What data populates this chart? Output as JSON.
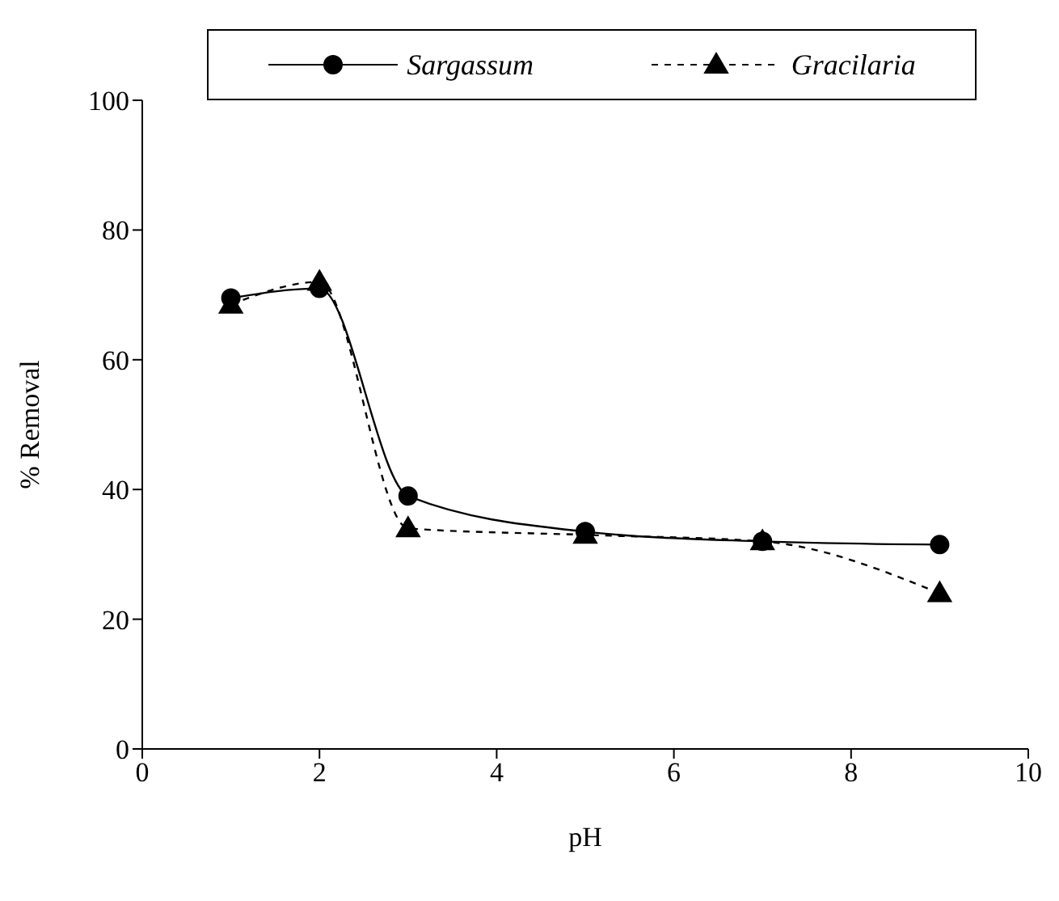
{
  "chart_data": {
    "type": "line",
    "xlabel": "pH",
    "ylabel": "% Removal",
    "x": [
      1,
      2,
      3,
      5,
      7,
      9
    ],
    "series": [
      {
        "name": "Sargassum",
        "color": "#000000",
        "values": [
          69.5,
          71,
          39,
          33.5,
          32,
          31.5
        ],
        "marker": "circle",
        "line_style": "solid"
      },
      {
        "name": "Gracilaria",
        "color": "#000000",
        "values": [
          68.5,
          72,
          34,
          33,
          32,
          24
        ],
        "marker": "triangle",
        "line_style": "dashed"
      }
    ],
    "xlim": [
      0,
      10
    ],
    "xticks": [
      0,
      2,
      4,
      6,
      8,
      10
    ],
    "ylim": [
      0,
      100
    ],
    "yticks": [
      0,
      20,
      40,
      60,
      80,
      100
    ],
    "grid": false,
    "legend": "top"
  }
}
